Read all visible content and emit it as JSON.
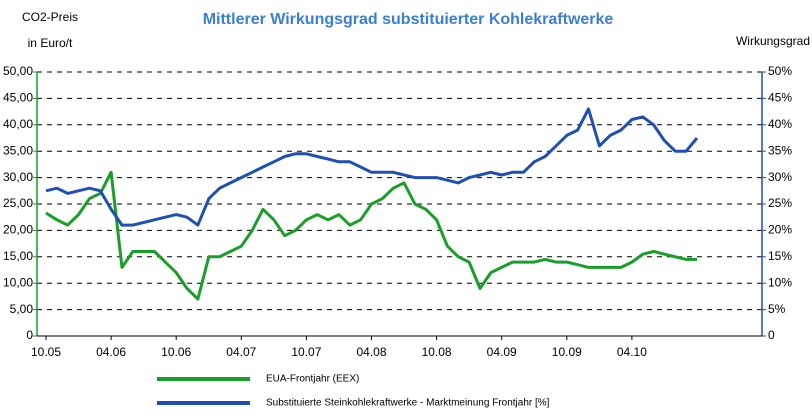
{
  "chart_data": {
    "type": "line",
    "title": "Mittlerer Wirkungsgrad substituierter Kohlekraftwerke",
    "y_label": [
      "CO2-Preis",
      "in Euro/t"
    ],
    "y2_label": "Wirkungsgrad",
    "categories": [
      "10.05",
      null,
      null,
      null,
      null,
      null,
      "04.06",
      null,
      null,
      null,
      null,
      null,
      "10.06",
      null,
      null,
      null,
      null,
      null,
      "04.07",
      null,
      null,
      null,
      null,
      null,
      "10.07",
      null,
      null,
      null,
      null,
      null,
      "04.08",
      null,
      null,
      null,
      null,
      null,
      "10.08",
      null,
      null,
      null,
      null,
      null,
      "04.09",
      null,
      null,
      null,
      null,
      null,
      "10.09",
      null,
      null,
      null,
      null,
      null,
      "04.10",
      null,
      null,
      null,
      null,
      null,
      null
    ],
    "series": [
      {
        "name": "EUA-Frontjahr (EEX)",
        "color": "#1a9e2a",
        "axis": "y",
        "values": [
          23.3,
          22,
          21,
          23,
          26,
          27,
          31,
          13,
          16,
          16,
          16,
          14,
          12,
          9,
          7,
          15,
          15,
          16,
          17,
          20,
          24,
          22,
          19,
          20,
          22,
          23,
          22,
          23,
          21,
          22,
          25,
          26,
          28,
          29,
          25,
          24,
          22,
          17,
          15,
          14,
          9,
          12,
          13,
          14,
          14,
          14,
          14.5,
          14,
          14,
          13.5,
          13,
          13,
          13,
          13,
          14,
          15.5,
          16,
          15.5,
          15,
          14.5,
          14.5
        ]
      },
      {
        "name": "Substituierte Steinkohlekraftwerke - Marktmeinung Frontjahr [%]",
        "color": "#1f4fb5",
        "axis": "y2",
        "values": [
          27.5,
          28,
          27,
          27.5,
          28,
          27.5,
          24,
          21,
          21,
          21.5,
          22,
          22.5,
          23,
          22.5,
          21,
          26,
          28,
          29,
          30,
          31,
          32,
          33,
          34,
          34.5,
          34.5,
          34,
          33.5,
          33,
          33,
          32,
          31,
          31,
          31,
          30.5,
          30,
          30,
          30,
          29.5,
          29,
          30,
          30.5,
          31,
          30.5,
          31,
          31,
          33,
          34,
          36,
          38,
          39,
          43,
          36,
          38,
          39,
          41,
          41.5,
          40,
          37,
          35,
          35,
          37.5
        ]
      }
    ],
    "ylim": [
      0,
      50
    ],
    "yticks": [
      0,
      {
        "value": 5,
        "label": "5,00"
      },
      {
        "value": 10,
        "label": "10,00"
      },
      {
        "value": 15,
        "label": "15,00"
      },
      {
        "value": 20,
        "label": "20,00"
      },
      {
        "value": 25,
        "label": "25,00"
      },
      {
        "value": 30,
        "label": "30,00"
      },
      {
        "value": 35,
        "label": "35,00"
      },
      {
        "value": 40,
        "label": "40,00"
      },
      {
        "value": 45,
        "label": "45,00"
      },
      {
        "value": 50,
        "label": "50,00"
      }
    ],
    "y2lim": [
      0,
      50
    ],
    "y2ticks": [
      0,
      {
        "value": 5,
        "label": "5%"
      },
      {
        "value": 10,
        "label": "10%"
      },
      {
        "value": 15,
        "label": "15%"
      },
      {
        "value": 20,
        "label": "20%"
      },
      {
        "value": 25,
        "label": "25%"
      },
      {
        "value": 30,
        "label": "30%"
      },
      {
        "value": 35,
        "label": "35%"
      },
      {
        "value": 40,
        "label": "40%"
      },
      {
        "value": 45,
        "label": "45%"
      },
      {
        "value": 50,
        "label": "50%"
      }
    ],
    "grid": true
  }
}
